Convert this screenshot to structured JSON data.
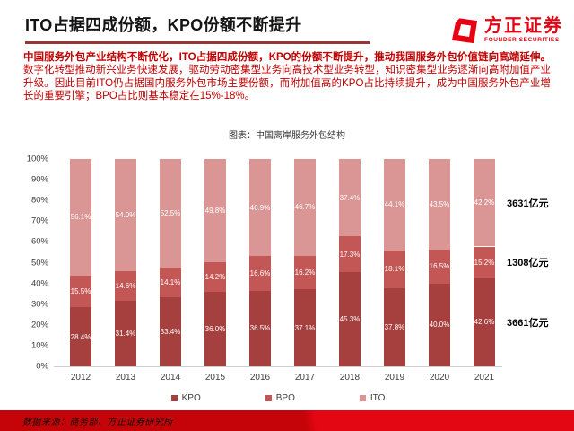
{
  "header": {
    "title": "ITO占据四成份额，KPO份额不断提升",
    "logo": {
      "name": "方正证券",
      "subtitle": "FOUNDER SECURITIES"
    }
  },
  "summary": {
    "lead": "中国服务外包产业结构不断优化，ITO占据四成份额，KPO的份额不断提升，推动我国服务外包价值链向高端延伸。",
    "body": "数字化转型推动新兴业务快速发展，驱动劳动密集型业务向高技术型业务转型，知识密集型业务逐渐向高附加值产业升级。因此目前ITO仍占据国内服务外包市场主要份额，而附加值高的KPO占比持续提升，成为中国服务外包产业增长的重要引擎；BPO占比则基本稳定在15%-18%。"
  },
  "chart_data": {
    "type": "bar",
    "stacked": true,
    "title": "图表：中国离岸服务外包结构",
    "categories": [
      "2012",
      "2013",
      "2014",
      "2015",
      "2016",
      "2017",
      "2018",
      "2019",
      "2020",
      "2021"
    ],
    "series": [
      {
        "name": "KPO",
        "color": "#a5403e",
        "values": [
          28.4,
          31.4,
          33.4,
          36.0,
          36.5,
          37.1,
          45.3,
          37.8,
          40.0,
          42.6
        ]
      },
      {
        "name": "BPO",
        "color": "#c25755",
        "values": [
          15.5,
          14.6,
          14.1,
          14.2,
          16.6,
          16.2,
          17.3,
          18.1,
          16.5,
          15.2
        ]
      },
      {
        "name": "ITO",
        "color": "#d99694",
        "values": [
          56.1,
          54.0,
          52.5,
          49.8,
          46.9,
          46.7,
          37.4,
          44.1,
          43.5,
          42.2
        ]
      }
    ],
    "value_suffix": "%",
    "y_ticks": [
      "100%",
      "90%",
      "80%",
      "70%",
      "60%",
      "50%",
      "40%",
      "30%",
      "20%",
      "10%",
      "0%"
    ],
    "ylim": [
      0,
      100
    ],
    "grid": false,
    "legend_position": "bottom",
    "annotations": [
      {
        "text": "3631亿元",
        "series": "ITO"
      },
      {
        "text": "1308亿元",
        "series": "BPO"
      },
      {
        "text": "3661亿元",
        "series": "KPO"
      }
    ]
  },
  "footer": {
    "source": "数据来源：商务部、方正证券研究所"
  }
}
